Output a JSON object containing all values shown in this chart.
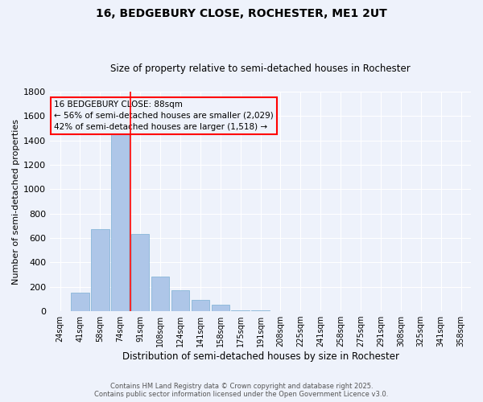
{
  "title1": "16, BEDGEBURY CLOSE, ROCHESTER, ME1 2UT",
  "title2": "Size of property relative to semi-detached houses in Rochester",
  "xlabel": "Distribution of semi-detached houses by size in Rochester",
  "ylabel": "Number of semi-detached properties",
  "categories": [
    "24sqm",
    "41sqm",
    "58sqm",
    "74sqm",
    "91sqm",
    "108sqm",
    "124sqm",
    "141sqm",
    "158sqm",
    "175sqm",
    "191sqm",
    "208sqm",
    "225sqm",
    "241sqm",
    "258sqm",
    "275sqm",
    "291sqm",
    "308sqm",
    "325sqm",
    "341sqm",
    "358sqm"
  ],
  "values": [
    3,
    155,
    675,
    1455,
    635,
    285,
    170,
    95,
    55,
    10,
    5,
    0,
    0,
    0,
    0,
    0,
    0,
    0,
    0,
    0,
    0
  ],
  "bar_color": "#aec6e8",
  "bar_edge_color": "#7aafd4",
  "property_line_label": "16 BEDGEBURY CLOSE: 88sqm",
  "annotation_line1": "← 56% of semi-detached houses are smaller (2,029)",
  "annotation_line2": "42% of semi-detached houses are larger (1,518) →",
  "ylim": [
    0,
    1800
  ],
  "yticks": [
    0,
    200,
    400,
    600,
    800,
    1000,
    1200,
    1400,
    1600,
    1800
  ],
  "footer1": "Contains HM Land Registry data © Crown copyright and database right 2025.",
  "footer2": "Contains public sector information licensed under the Open Government Licence v3.0.",
  "bg_color": "#eef2fb"
}
